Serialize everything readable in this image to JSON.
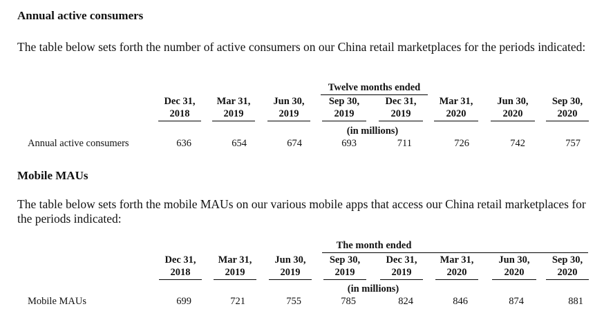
{
  "section1": {
    "heading": "Annual active consumers",
    "paragraph": "The table below sets forth the number of active consumers on our China retail marketplaces for the periods indicated:",
    "table": {
      "group_header": "Twelve months ended",
      "columns": [
        {
          "line1": "Dec 31,",
          "line2": "2018"
        },
        {
          "line1": "Mar 31,",
          "line2": "2019"
        },
        {
          "line1": "Jun 30,",
          "line2": "2019"
        },
        {
          "line1": "Sep 30,",
          "line2": "2019"
        },
        {
          "line1": "Dec 31,",
          "line2": "2019"
        },
        {
          "line1": "Mar 31,",
          "line2": "2020"
        },
        {
          "line1": "Jun 30,",
          "line2": "2020"
        },
        {
          "line1": "Sep 30,",
          "line2": "2020"
        }
      ],
      "unit": "(in millions)",
      "row_label": "Annual active consumers",
      "values": [
        "636",
        "654",
        "674",
        "693",
        "711",
        "726",
        "742",
        "757"
      ]
    }
  },
  "section2": {
    "heading": "Mobile MAUs",
    "paragraph": "The table below sets forth the mobile MAUs on our various mobile apps that access our China retail marketplaces for the periods indicated:",
    "table": {
      "group_header": "The month ended",
      "columns": [
        {
          "line1": "Dec 31,",
          "line2": "2018"
        },
        {
          "line1": "Mar 31,",
          "line2": "2019"
        },
        {
          "line1": "Jun 30,",
          "line2": "2019"
        },
        {
          "line1": "Sep 30,",
          "line2": "2019"
        },
        {
          "line1": "Dec 31,",
          "line2": "2019"
        },
        {
          "line1": "Mar 31,",
          "line2": "2020"
        },
        {
          "line1": "Jun 30,",
          "line2": "2020"
        },
        {
          "line1": "Sep 30,",
          "line2": "2020"
        }
      ],
      "unit": "(in millions)",
      "row_label": "Mobile MAUs",
      "values": [
        "699",
        "721",
        "755",
        "785",
        "824",
        "846",
        "874",
        "881"
      ]
    }
  }
}
